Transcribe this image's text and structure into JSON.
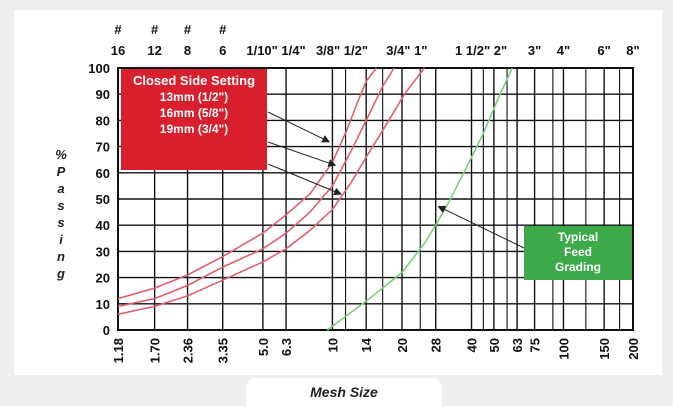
{
  "chart_data": {
    "type": "line",
    "title": "",
    "xlabel": "Mesh Size",
    "ylabel_chars": [
      "%",
      "P",
      "a",
      "s",
      "s",
      "i",
      "n",
      "g"
    ],
    "ylim": [
      0,
      100
    ],
    "y_ticks": [
      0,
      10,
      20,
      30,
      40,
      50,
      60,
      70,
      80,
      90,
      100
    ],
    "x_scale": "log",
    "x_bottom_ticks": [
      {
        "label": "1.18",
        "value": 1.18
      },
      {
        "label": "1.70",
        "value": 1.7
      },
      {
        "label": "2.36",
        "value": 2.36
      },
      {
        "label": "3.35",
        "value": 3.35
      },
      {
        "label": "5.0",
        "value": 5.0
      },
      {
        "label": "6.3",
        "value": 6.3
      },
      {
        "label": "10",
        "value": 10
      },
      {
        "label": "14",
        "value": 14
      },
      {
        "label": "20",
        "value": 20
      },
      {
        "label": "28",
        "value": 28
      },
      {
        "label": "40",
        "value": 40
      },
      {
        "label": "50",
        "value": 50
      },
      {
        "label": "63",
        "value": 63
      },
      {
        "label": "75",
        "value": 75
      },
      {
        "label": "100",
        "value": 100
      },
      {
        "label": "150",
        "value": 150
      },
      {
        "label": "200",
        "value": 200
      }
    ],
    "x_top_ticks": [
      {
        "hash": "#",
        "label": "16",
        "value": 1.18
      },
      {
        "hash": "#",
        "label": "12",
        "value": 1.7
      },
      {
        "hash": "#",
        "label": "8",
        "value": 2.36
      },
      {
        "hash": "#",
        "label": "6",
        "value": 3.35
      },
      {
        "label": "1/10\" 1/4\"",
        "value": 5.7
      },
      {
        "label": "3/8\" 1/2\"",
        "value": 11
      },
      {
        "label": "3/4\" 1\"",
        "value": 21
      },
      {
        "label": "1 1/2\" 2\"",
        "value": 44
      },
      {
        "label": "3\"",
        "value": 75
      },
      {
        "label": "4\"",
        "value": 100
      },
      {
        "label": "6\"",
        "value": 150
      },
      {
        "label": "8\"",
        "value": 200
      }
    ],
    "minor_gridlines_x": [
      11.4,
      16.5,
      24,
      45,
      57,
      90,
      125,
      175
    ],
    "grid": true,
    "series": [
      {
        "name": "13mm (1/2\")",
        "color": "#e0606e",
        "points": [
          [
            1.18,
            12
          ],
          [
            1.7,
            16
          ],
          [
            2.36,
            21
          ],
          [
            3.35,
            28
          ],
          [
            5.0,
            37
          ],
          [
            6.3,
            44
          ],
          [
            8.0,
            52
          ],
          [
            10,
            64
          ],
          [
            11.5,
            76
          ],
          [
            13,
            88
          ],
          [
            14,
            95
          ],
          [
            15.5,
            100
          ]
        ]
      },
      {
        "name": "16mm (5/8\")",
        "color": "#e0606e",
        "points": [
          [
            1.18,
            9
          ],
          [
            1.7,
            12
          ],
          [
            2.36,
            17
          ],
          [
            3.35,
            24
          ],
          [
            5.0,
            31
          ],
          [
            6.3,
            37
          ],
          [
            8.0,
            45
          ],
          [
            10,
            55
          ],
          [
            12,
            68
          ],
          [
            14,
            80
          ],
          [
            16.5,
            93
          ],
          [
            18.5,
            100
          ]
        ]
      },
      {
        "name": "19mm (3/4\")",
        "color": "#e0606e",
        "points": [
          [
            1.18,
            6
          ],
          [
            1.7,
            9
          ],
          [
            2.36,
            13
          ],
          [
            3.35,
            19
          ],
          [
            5.0,
            26
          ],
          [
            6.3,
            31
          ],
          [
            8.0,
            38
          ],
          [
            10,
            46
          ],
          [
            12,
            56
          ],
          [
            14,
            66
          ],
          [
            17,
            78
          ],
          [
            20.5,
            90
          ],
          [
            25,
            100
          ]
        ]
      },
      {
        "name": "Typical Feed Grading",
        "color": "#7fcf7a",
        "points": [
          [
            9.5,
            0
          ],
          [
            14,
            11
          ],
          [
            20,
            22
          ],
          [
            25,
            33
          ],
          [
            28,
            40
          ],
          [
            32,
            49
          ],
          [
            38,
            62
          ],
          [
            45,
            75
          ],
          [
            52,
            88
          ],
          [
            60,
            100
          ]
        ]
      }
    ],
    "annotations": {
      "closed_side_title": "Closed Side Setting",
      "closed_side_items": [
        "13mm (1/2\")",
        "16mm (5/8\")",
        "19mm (3/4\")"
      ],
      "feed_label_lines": [
        "Typical",
        "Feed",
        "Grading"
      ]
    }
  }
}
